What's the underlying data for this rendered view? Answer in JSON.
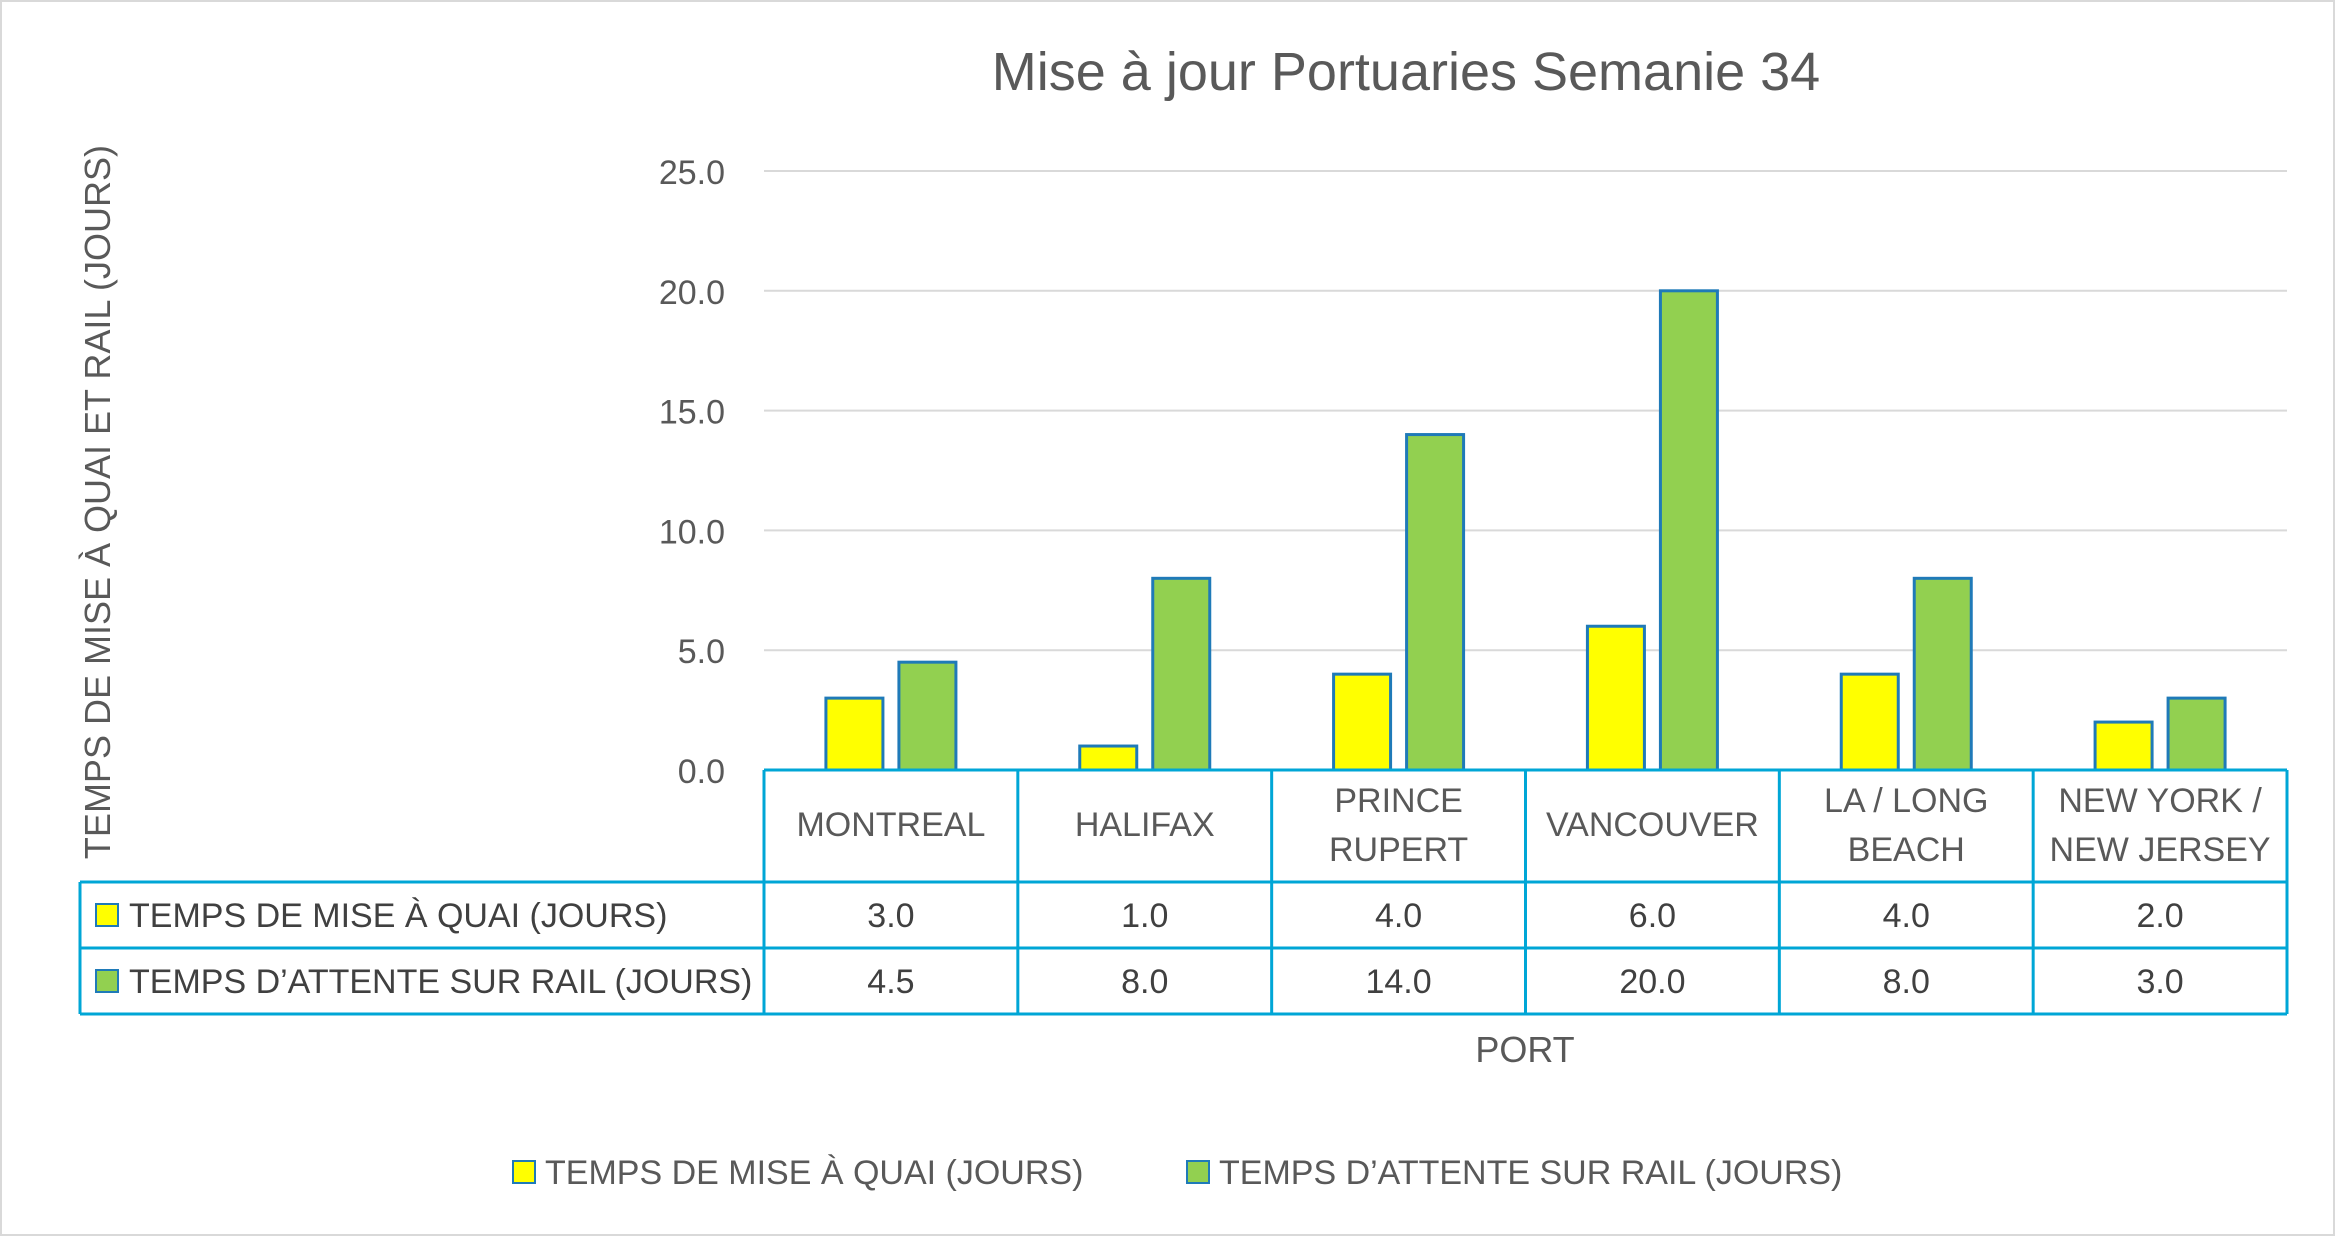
{
  "chart_data": {
    "type": "bar",
    "title": "Mise à jour Portuaries Semanie 34",
    "xlabel": "PORT",
    "ylabel": "TEMPS DE MISE À QUAI ET RAIL (JOURS)",
    "ylim": [
      0,
      25
    ],
    "yticks": [
      "0.0",
      "5.0",
      "10.0",
      "15.0",
      "20.0",
      "25.0"
    ],
    "grid": true,
    "legend_position": "bottom",
    "categories": [
      [
        "MONTREAL"
      ],
      [
        "HALIFAX"
      ],
      [
        "PRINCE",
        "RUPERT"
      ],
      [
        "VANCOUVER"
      ],
      [
        "LA / LONG",
        "BEACH"
      ],
      [
        "NEW YORK /",
        "NEW JERSEY"
      ]
    ],
    "series": [
      {
        "name": "TEMPS DE MISE À QUAI (JOURS)",
        "color": "#ffff00",
        "values": [
          3.0,
          1.0,
          4.0,
          6.0,
          4.0,
          2.0
        ],
        "labels": [
          "3.0",
          "1.0",
          "4.0",
          "6.0",
          "4.0",
          "2.0"
        ]
      },
      {
        "name": "TEMPS  D’ATTENTE SUR RAIL (JOURS)",
        "color": "#92d050",
        "values": [
          4.5,
          8.0,
          14.0,
          20.0,
          8.0,
          3.0
        ],
        "labels": [
          "4.5",
          "8.0",
          "14.0",
          "20.0",
          "8.0",
          "3.0"
        ]
      }
    ],
    "bar_outline_color": "#1f7ab8",
    "table_border_color": "#00a6d6",
    "gridline_color": "#d9d9d9"
  }
}
